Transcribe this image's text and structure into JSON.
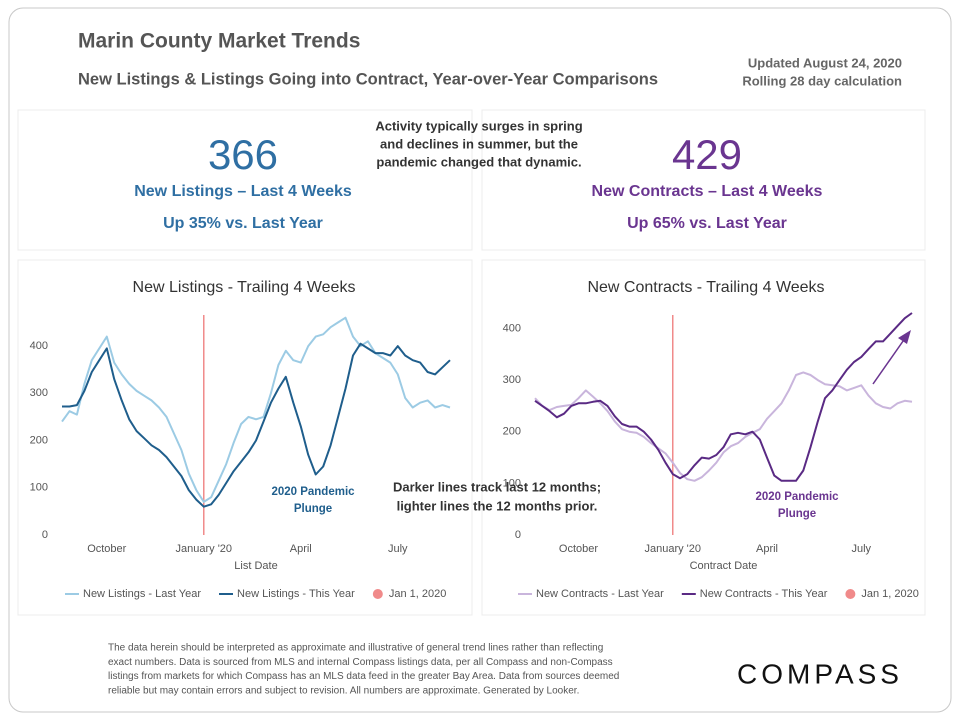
{
  "header": {
    "title": "Marin County Market Trends",
    "subtitle": "New Listings & Listings Going into Contract, Year-over-Year Comparisons",
    "updated": [
      "Updated August 24, 2020",
      "Rolling 28 day calculation"
    ]
  },
  "center_note": [
    "Activity typically surges in spring",
    "and declines in summer, but the",
    "pandemic changed that dynamic."
  ],
  "kpis": [
    {
      "value": 366,
      "label": "New Listings – Last 4 Weeks",
      "change": "Up 35% vs. Last Year",
      "color": "#2f6fa3"
    },
    {
      "value": 429,
      "label": "New Contracts – Last 4 Weeks",
      "change": "Up 65% vs. Last Year",
      "color": "#6a3590"
    }
  ],
  "overlay_note": [
    "Darker lines track last 12 months;",
    "lighter lines the 12 months prior."
  ],
  "footnote": [
    "The data herein should be interpreted as approximate and illustrative of general trend lines rather than reflecting",
    "exact numbers. Data is sourced from MLS and internal Compass listings data, per all Compass and non-Compass",
    "listings from markets for which Compass has an MLS data feed in the greater Bay Area. Data from sources deemed",
    "reliable but may contain errors and subject to revision. All numbers are approximate. Generated by Looker."
  ],
  "logo": "COMPASS",
  "chart_data": [
    {
      "type": "line",
      "title": "New Listings - Trailing 4 Weeks",
      "xlabel": "List Date",
      "categories": [
        null,
        null,
        null,
        null,
        null,
        null,
        "October",
        null,
        null,
        null,
        null,
        null,
        null,
        null,
        null,
        null,
        null,
        null,
        null,
        "January '20",
        null,
        null,
        null,
        null,
        null,
        null,
        null,
        null,
        null,
        null,
        null,
        null,
        "April",
        null,
        null,
        null,
        null,
        null,
        null,
        null,
        null,
        null,
        null,
        null,
        null,
        "July",
        null,
        null,
        null,
        null,
        null,
        null,
        null
      ],
      "series": [
        {
          "name": "New Listings - Last Year",
          "color": "#9ccbe4",
          "values": [
            240,
            262,
            255,
            320,
            370,
            395,
            420,
            365,
            340,
            320,
            305,
            295,
            285,
            270,
            250,
            215,
            180,
            130,
            95,
            70,
            80,
            115,
            150,
            195,
            235,
            250,
            245,
            250,
            300,
            360,
            390,
            370,
            365,
            400,
            420,
            425,
            440,
            450,
            460,
            420,
            400,
            410,
            385,
            375,
            365,
            340,
            290,
            270,
            280,
            285,
            270,
            275,
            270
          ]
        },
        {
          "name": "New Listings - This Year",
          "color": "#1f5e8c",
          "values": [
            272,
            272,
            275,
            305,
            345,
            370,
            395,
            330,
            285,
            245,
            220,
            205,
            190,
            180,
            165,
            145,
            125,
            95,
            75,
            60,
            65,
            85,
            110,
            135,
            155,
            175,
            200,
            240,
            280,
            310,
            335,
            280,
            230,
            170,
            128,
            145,
            190,
            250,
            310,
            380,
            405,
            395,
            385,
            385,
            380,
            400,
            380,
            370,
            365,
            345,
            340,
            355,
            370
          ]
        }
      ],
      "reference_line": {
        "name": "Jan 1, 2020",
        "color": "#f08a8a",
        "index": 19
      },
      "annotation": [
        "2020 Pandemic",
        "Plunge"
      ],
      "annotation_color": "#1f5e8c",
      "ylim": [
        0,
        470
      ],
      "yticks": [
        0,
        100,
        200,
        300,
        400
      ],
      "grid": false
    },
    {
      "type": "line",
      "title": "New Contracts - Trailing 4 Weeks",
      "xlabel": "Contract Date",
      "categories": [
        null,
        null,
        null,
        null,
        null,
        null,
        "October",
        null,
        null,
        null,
        null,
        null,
        null,
        null,
        null,
        null,
        null,
        null,
        null,
        "January '20",
        null,
        null,
        null,
        null,
        null,
        null,
        null,
        null,
        null,
        null,
        null,
        null,
        "April",
        null,
        null,
        null,
        null,
        null,
        null,
        null,
        null,
        null,
        null,
        null,
        null,
        "July",
        null,
        null,
        null,
        null,
        null,
        null,
        null
      ],
      "series": [
        {
          "name": "New Contracts - Last Year",
          "color": "#c9b5dc",
          "values": [
            265,
            250,
            242,
            248,
            250,
            252,
            265,
            280,
            268,
            255,
            240,
            220,
            205,
            200,
            198,
            190,
            178,
            168,
            158,
            140,
            120,
            108,
            105,
            112,
            125,
            140,
            160,
            172,
            178,
            190,
            198,
            205,
            225,
            240,
            255,
            280,
            310,
            315,
            310,
            300,
            292,
            290,
            288,
            280,
            285,
            290,
            270,
            255,
            248,
            245,
            255,
            260,
            258
          ]
        },
        {
          "name": "New Contracts - This Year",
          "color": "#5a2a84",
          "values": [
            260,
            250,
            240,
            228,
            235,
            250,
            255,
            255,
            258,
            260,
            250,
            230,
            215,
            210,
            210,
            200,
            185,
            165,
            140,
            118,
            110,
            118,
            135,
            150,
            148,
            155,
            170,
            195,
            198,
            195,
            200,
            185,
            150,
            115,
            105,
            105,
            105,
            125,
            170,
            220,
            265,
            280,
            300,
            320,
            335,
            345,
            360,
            375,
            375,
            390,
            405,
            420,
            430
          ]
        }
      ],
      "reference_line": {
        "name": "Jan 1, 2020",
        "color": "#f08a8a",
        "index": 19
      },
      "annotation": [
        "2020 Pandemic",
        "Plunge"
      ],
      "annotation_color": "#6a3590",
      "ylim": [
        0,
        430
      ],
      "yticks": [
        0,
        100,
        200,
        300,
        400
      ],
      "grid": false
    }
  ]
}
